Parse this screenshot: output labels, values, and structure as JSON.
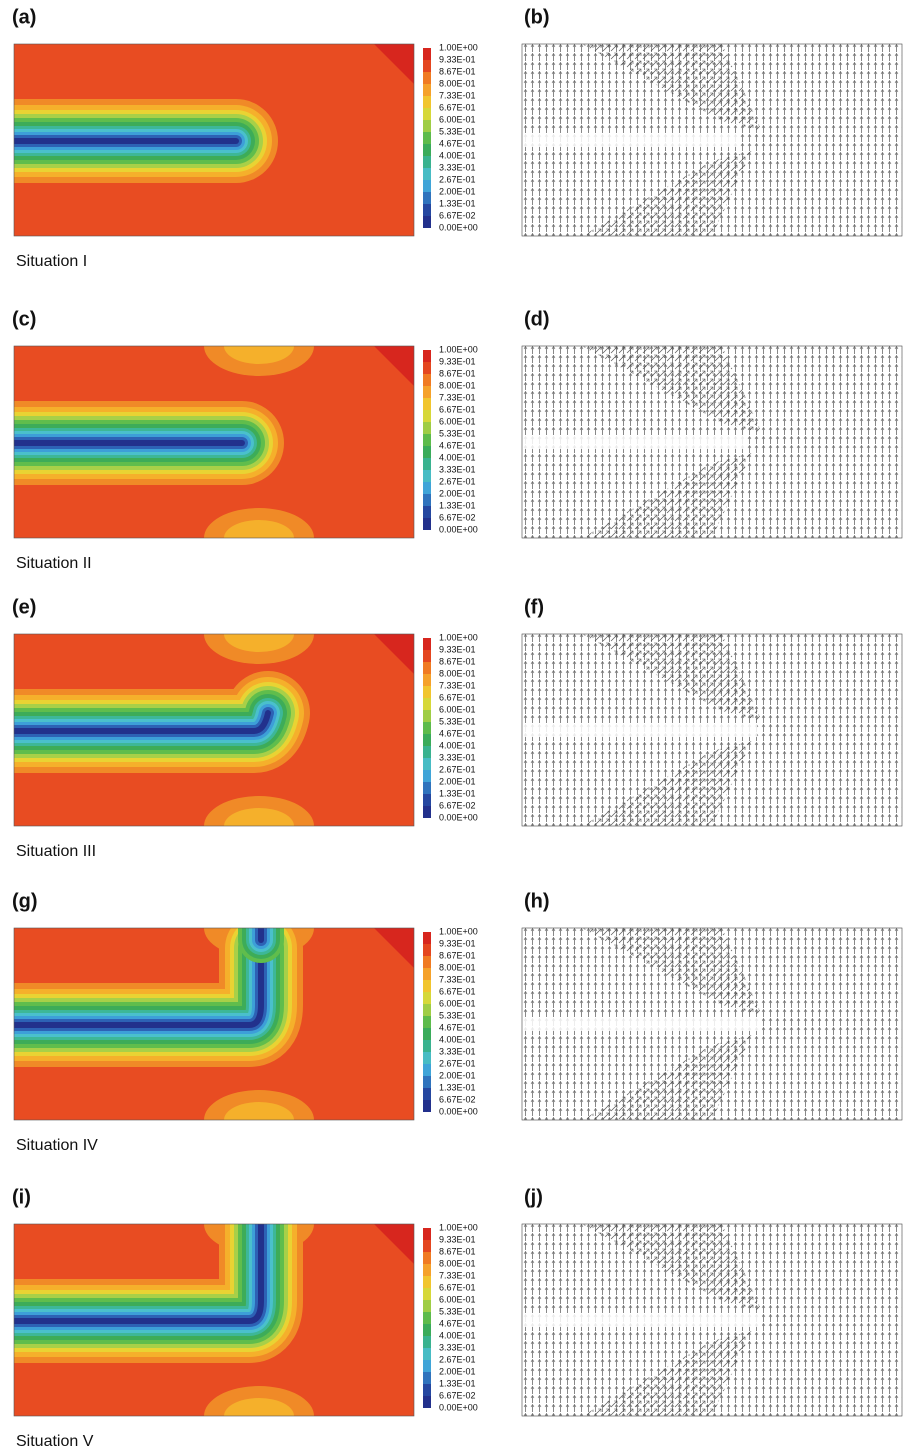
{
  "panels": [
    {
      "left_label": "(a)",
      "right_label": "(b)",
      "situation": "Situation I"
    },
    {
      "left_label": "(c)",
      "right_label": "(d)",
      "situation": "Situation II"
    },
    {
      "left_label": "(e)",
      "right_label": "(f)",
      "situation": "Situation III"
    },
    {
      "left_label": "(g)",
      "right_label": "(h)",
      "situation": "Situation IV"
    },
    {
      "left_label": "(i)",
      "right_label": "(j)",
      "situation": "Situation V"
    }
  ],
  "colorbar": {
    "labels": [
      "1.00E+00",
      "9.33E-01",
      "8.67E-01",
      "8.00E-01",
      "7.33E-01",
      "6.67E-01",
      "6.00E-01",
      "5.33E-01",
      "4.67E-01",
      "4.00E-01",
      "3.33E-01",
      "2.67E-01",
      "2.00E-01",
      "1.33E-01",
      "6.67E-02",
      "0.00E+00"
    ]
  }
}
